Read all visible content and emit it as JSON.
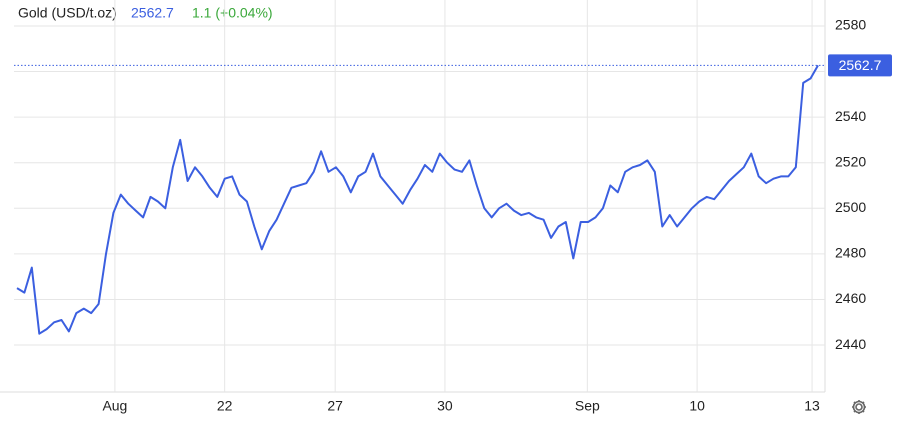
{
  "chart_data": {
    "type": "line",
    "title": "Gold (USD/t.oz)",
    "price": 2562.7,
    "change": "1.1 (+0.04%)",
    "series": [
      {
        "name": "Gold",
        "color": "#3b5fe0",
        "values": [
          2465,
          2463,
          2474,
          2445,
          2447,
          2450,
          2451,
          2446,
          2454,
          2456,
          2454,
          2458,
          2480,
          2498,
          2506,
          2502,
          2499,
          2496,
          2505,
          2503,
          2500,
          2518,
          2530,
          2512,
          2518,
          2514,
          2509,
          2505,
          2513,
          2514,
          2506,
          2503,
          2492,
          2482,
          2490,
          2495,
          2502,
          2509,
          2510,
          2511,
          2516,
          2525,
          2516,
          2518,
          2514,
          2507,
          2514,
          2516,
          2524,
          2514,
          2510,
          2506,
          2502,
          2508,
          2513,
          2519,
          2516,
          2524,
          2520,
          2517,
          2516,
          2521,
          2510,
          2500,
          2496,
          2500,
          2502,
          2499,
          2497,
          2498,
          2496,
          2495,
          2487,
          2492,
          2494,
          2478,
          2494,
          2494,
          2496,
          2500,
          2510,
          2507,
          2516,
          2518,
          2519,
          2521,
          2516,
          2492,
          2497,
          2492,
          2496,
          2500,
          2503,
          2505,
          2504,
          2508,
          2512,
          2515,
          2518,
          2524,
          2514,
          2511,
          2513,
          2514,
          2514,
          2518,
          2555,
          2557,
          2562.7
        ]
      }
    ],
    "xlim": [
      0,
      108
    ],
    "xticks": [
      {
        "value": 13.2,
        "label": "Aug"
      },
      {
        "value": 28.0,
        "label": "22"
      },
      {
        "value": 42.9,
        "label": "27"
      },
      {
        "value": 57.7,
        "label": "30"
      },
      {
        "value": 76.9,
        "label": "Sep"
      },
      {
        "value": 91.7,
        "label": "10"
      },
      {
        "value": 107.2,
        "label": "13"
      }
    ],
    "ylim": [
      2419.4,
      2589.2
    ],
    "yticks": [
      2440,
      2460,
      2480,
      2500,
      2520,
      2540,
      2560,
      2580
    ],
    "grid": true
  }
}
